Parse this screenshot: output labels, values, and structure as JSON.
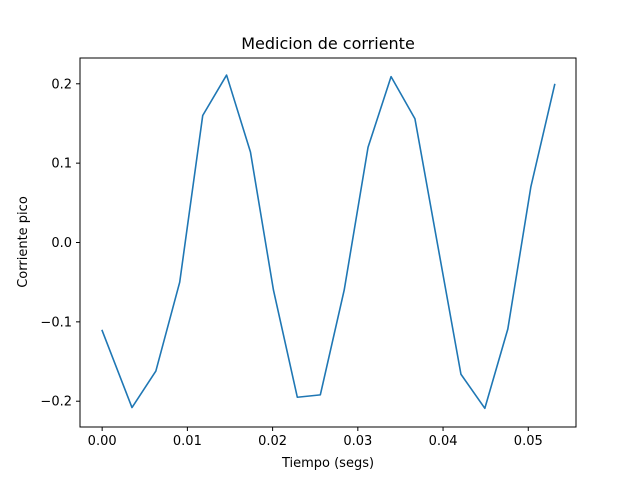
{
  "chart_data": {
    "type": "line",
    "title": "Medicion de corriente",
    "xlabel": "Tiempo (segs)",
    "ylabel": "Corriente pico",
    "xlim": [
      -0.0026,
      0.0556
    ],
    "ylim": [
      -0.2325,
      0.2325
    ],
    "xticks": [
      0.0,
      0.01,
      0.02,
      0.03,
      0.04,
      0.05
    ],
    "xtick_labels": [
      "0.00",
      "0.01",
      "0.02",
      "0.03",
      "0.04",
      "0.05"
    ],
    "yticks": [
      -0.2,
      -0.1,
      0.0,
      0.1,
      0.2
    ],
    "ytick_labels": [
      "−0.2",
      "−0.1",
      "0.0",
      "0.1",
      "0.2"
    ],
    "grid": false,
    "color": "#1f77b4",
    "series": [
      {
        "x": [
          0.0,
          0.0035,
          0.0063,
          0.0091,
          0.0118,
          0.0146,
          0.0174,
          0.0201,
          0.0229,
          0.0256,
          0.0284,
          0.0312,
          0.0339,
          0.0367,
          0.0394,
          0.0421,
          0.0449,
          0.0476,
          0.0503,
          0.0531
        ],
        "values": [
          -0.111,
          -0.208,
          -0.162,
          -0.05,
          0.16,
          0.211,
          0.114,
          -0.06,
          -0.195,
          -0.192,
          -0.06,
          0.12,
          0.209,
          0.156,
          -0.005,
          -0.166,
          -0.209,
          -0.109,
          0.07,
          0.199
        ]
      }
    ]
  }
}
